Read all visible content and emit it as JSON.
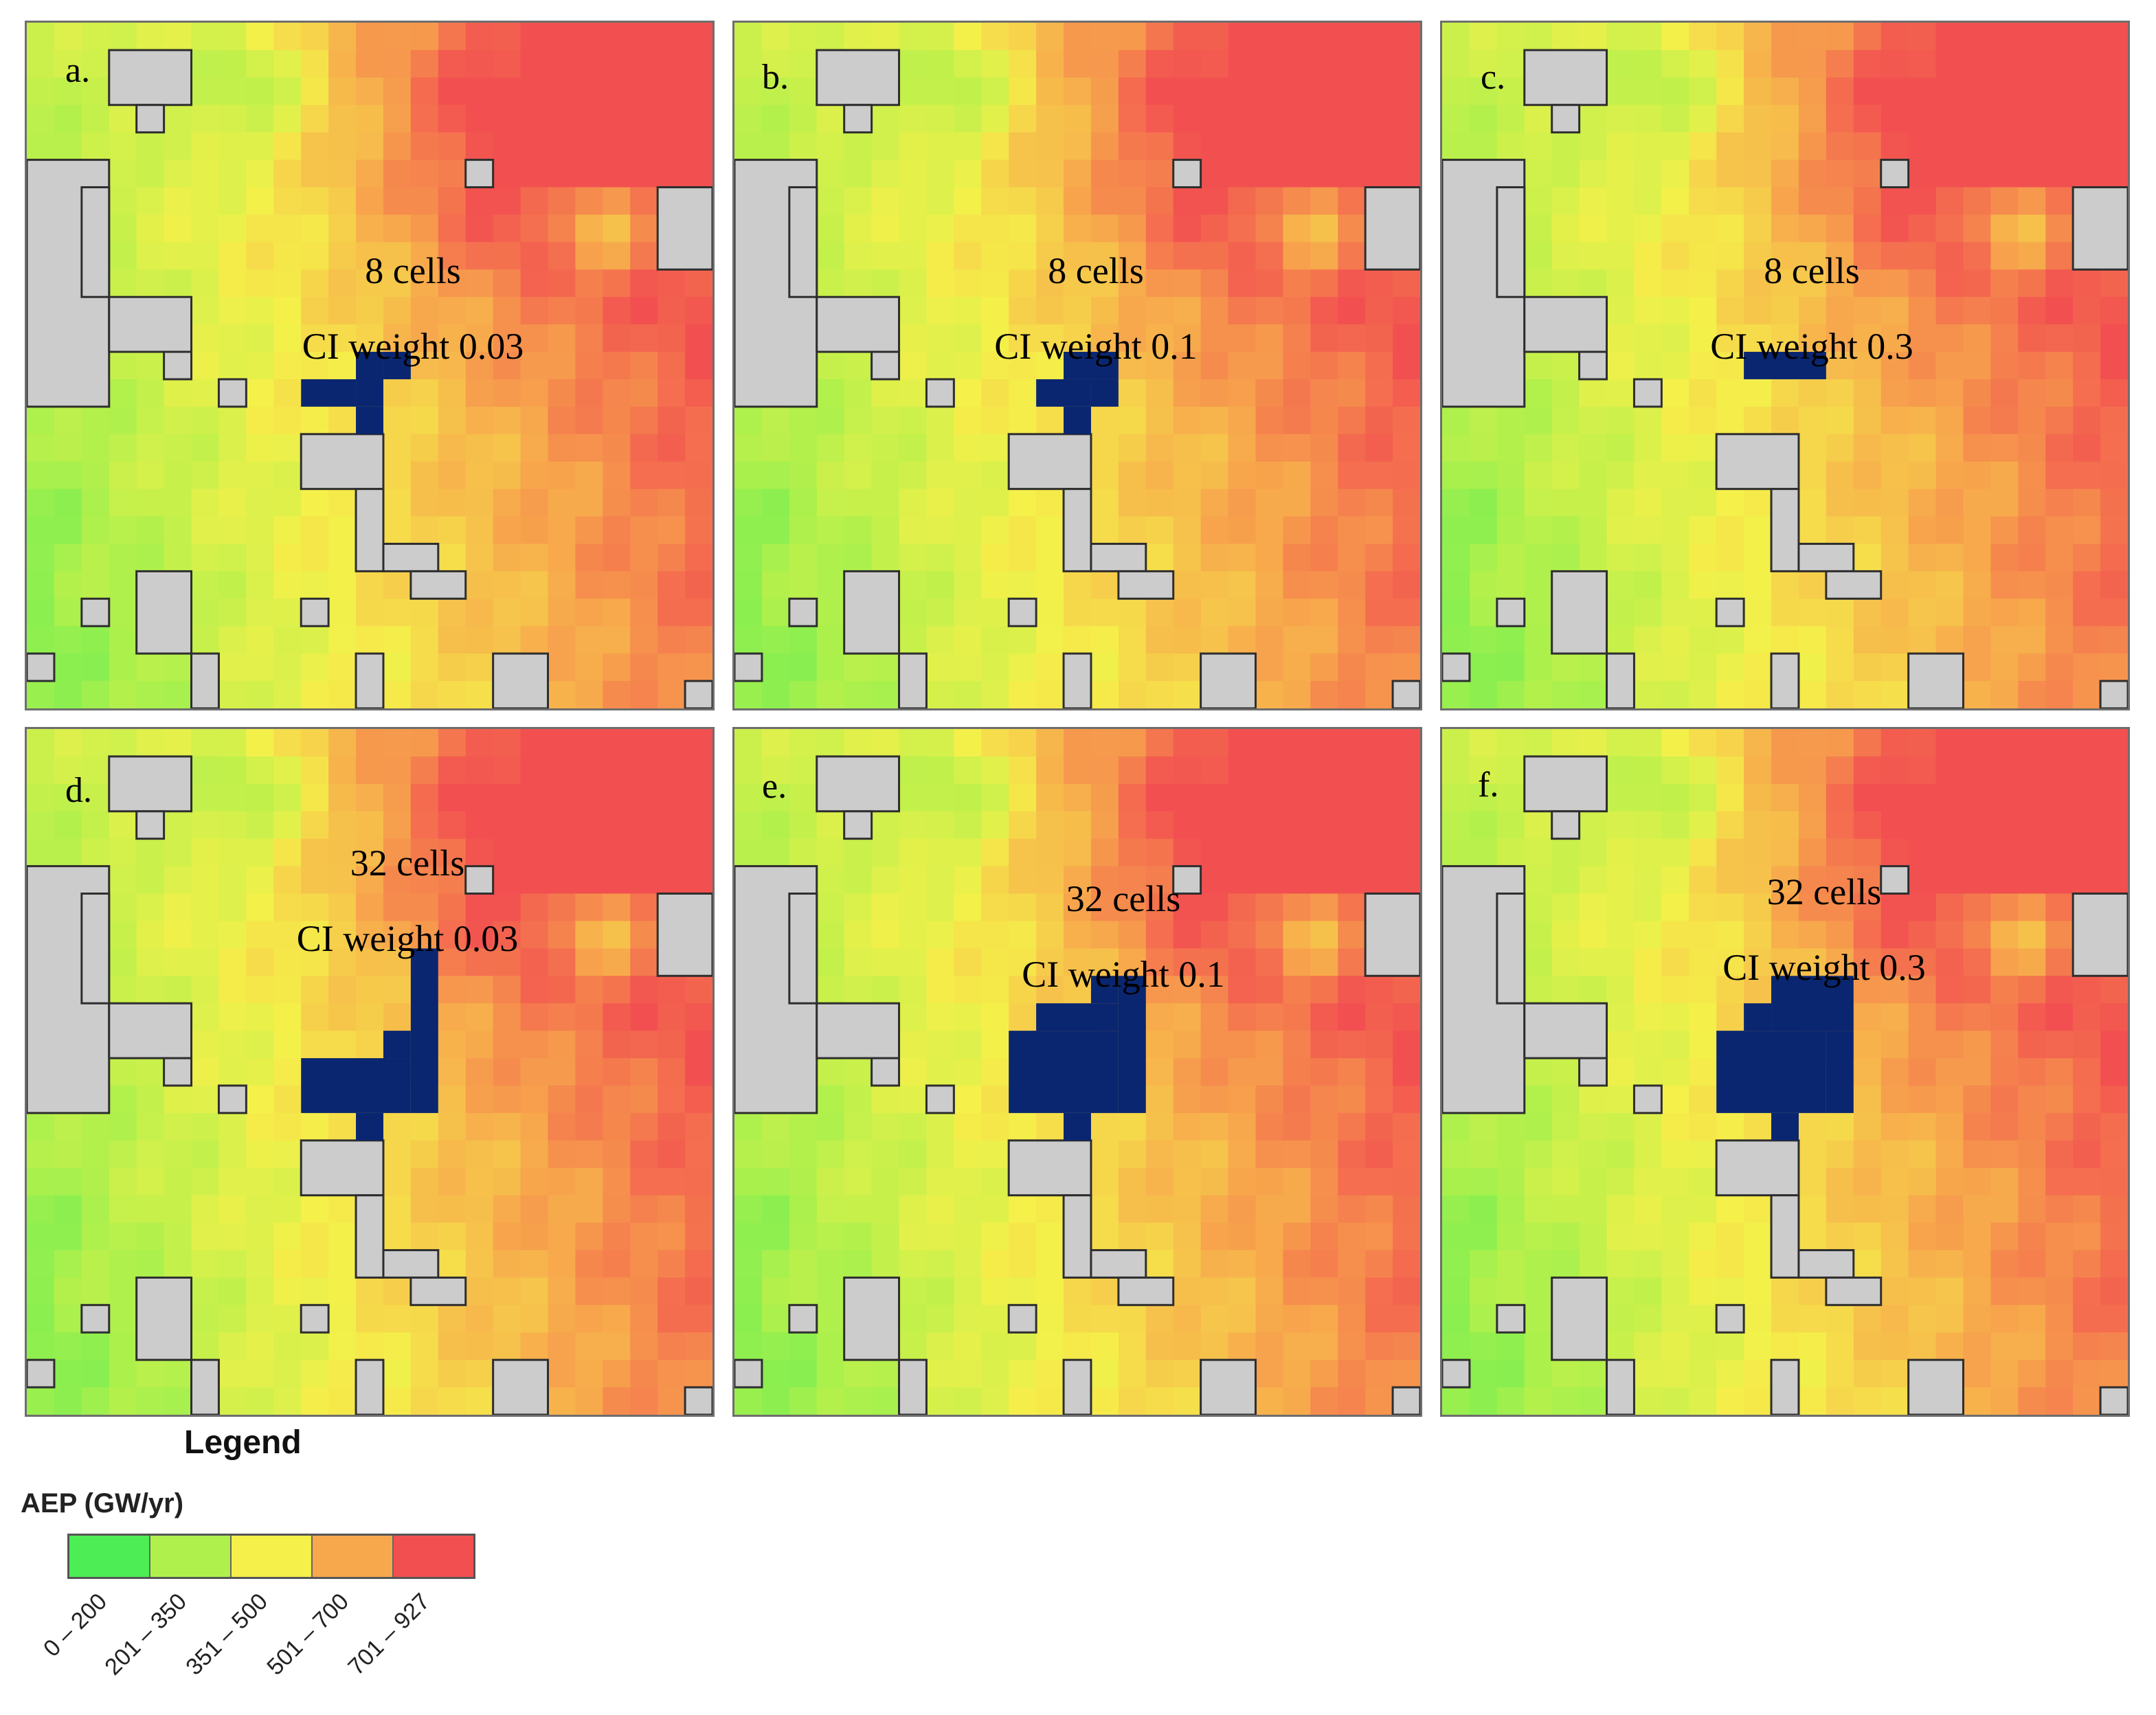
{
  "legend": {
    "title": "Legend",
    "subtitle": "AEP (GW/yr)",
    "classes": [
      {
        "label": "0 – 200",
        "color": "#4ded55"
      },
      {
        "label": "201 – 350",
        "color": "#b0f04c"
      },
      {
        "label": "351 – 500",
        "color": "#f5f04a"
      },
      {
        "label": "501 – 700",
        "color": "#f7a84c"
      },
      {
        "label": "701 – 927",
        "color": "#f25050"
      }
    ]
  },
  "colors": {
    "excluded_area": "#cccccc",
    "selected_cells": "#0a2670",
    "boundary": "#2e2e2e"
  },
  "panels": [
    {
      "letter": "a.",
      "cells": "8 cells",
      "weight": "CI weight 0.03",
      "selection": "a"
    },
    {
      "letter": "b.",
      "cells": "8 cells",
      "weight": "CI weight 0.1",
      "selection": "b"
    },
    {
      "letter": "c.",
      "cells": "8 cells",
      "weight": "CI weight 0.3",
      "selection": "c"
    },
    {
      "letter": "d.",
      "cells": "32 cells",
      "weight": "CI weight 0.03",
      "selection": "d"
    },
    {
      "letter": "e.",
      "cells": "32 cells",
      "weight": "CI weight 0.1",
      "selection": "e"
    },
    {
      "letter": "f.",
      "cells": "32 cells",
      "weight": "CI weight 0.3",
      "selection": "f"
    }
  ]
}
